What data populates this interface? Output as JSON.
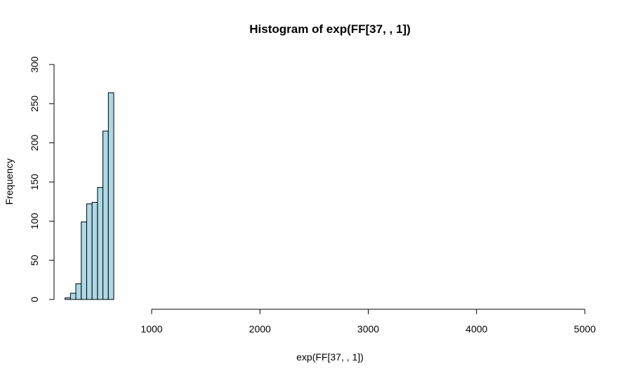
{
  "chart_data": {
    "type": "bar",
    "title": "Histogram of exp(FF[37, , 1])",
    "xlabel": "exp(FF[37, , 1])",
    "ylabel": "Frequency",
    "bar_color": "#ADD8E6",
    "border_color": "#000000",
    "xlim": [
      0,
      5000
    ],
    "ylim": [
      0,
      300
    ],
    "x_ticks": [
      1000,
      2000,
      3000,
      4000,
      5000
    ],
    "y_ticks": [
      0,
      50,
      100,
      150,
      200,
      250,
      300
    ],
    "bin_width": 50,
    "bins": [
      {
        "start": 200,
        "end": 250,
        "count": 2
      },
      {
        "start": 250,
        "end": 300,
        "count": 8
      },
      {
        "start": 300,
        "end": 350,
        "count": 20
      },
      {
        "start": 350,
        "end": 400,
        "count": 99
      },
      {
        "start": 400,
        "end": 450,
        "count": 122
      },
      {
        "start": 450,
        "end": 500,
        "count": 124
      },
      {
        "start": 500,
        "end": 550,
        "count": 143
      },
      {
        "start": 550,
        "end": 600,
        "count": 215
      },
      {
        "start": 600,
        "end": 650,
        "count": 264
      }
    ]
  }
}
